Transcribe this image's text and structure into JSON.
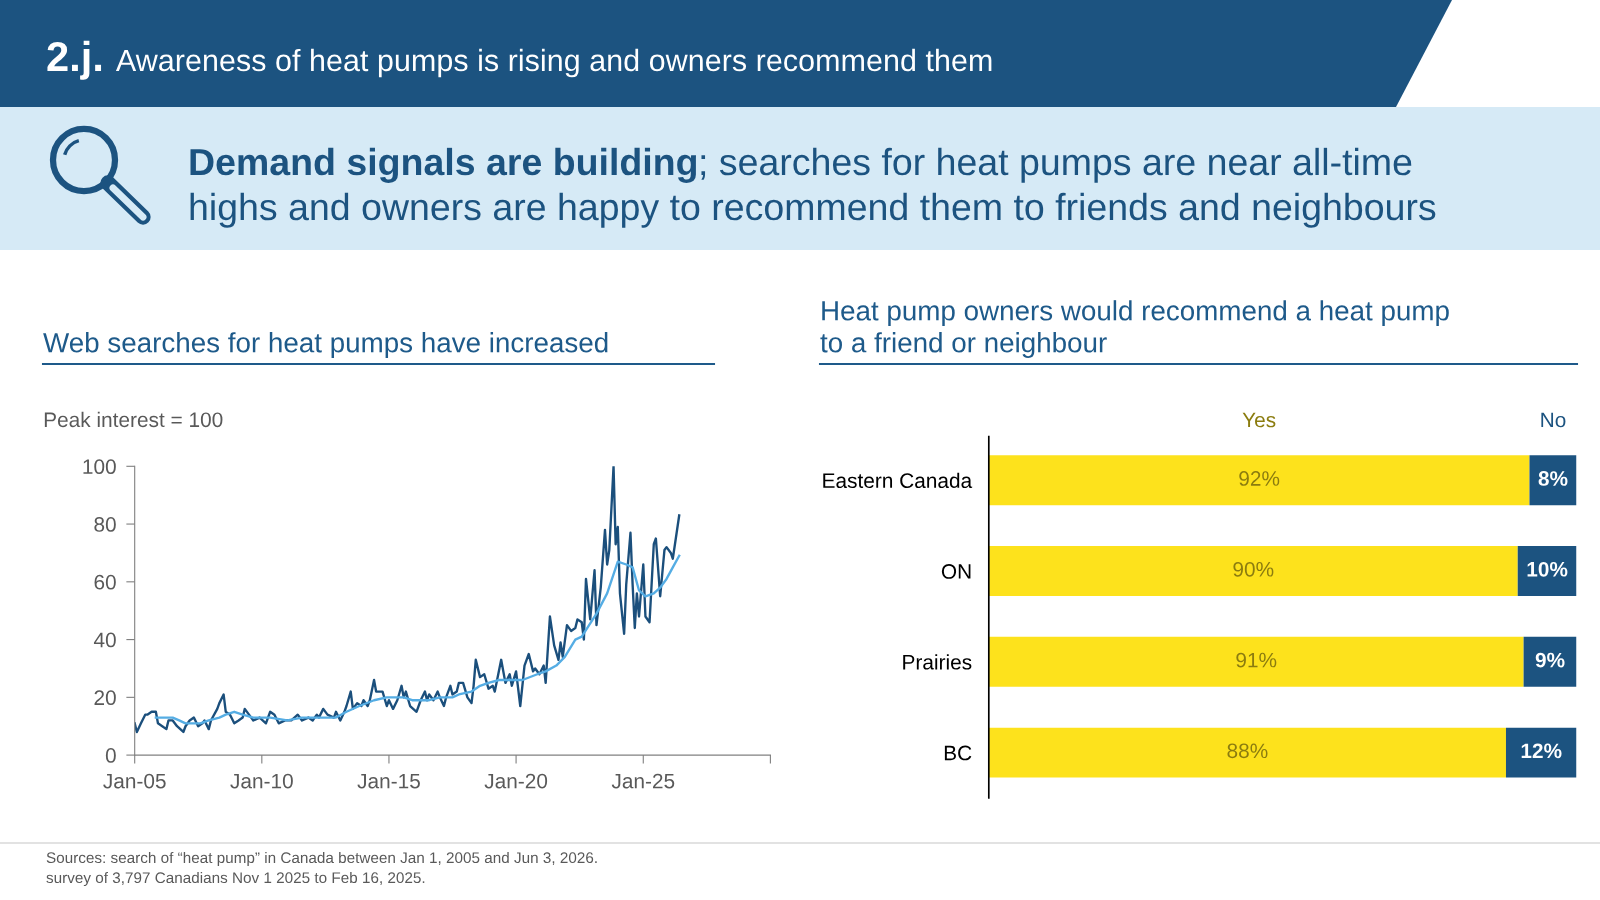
{
  "chart_data": [
    {
      "type": "line",
      "title": "Web searches for heat pumps have increased",
      "ylabel": "Peak interest = 100",
      "xlim": [
        "2005-01-01",
        "2030-01-01"
      ],
      "xticks": [
        {
          "value": "2005-01-01",
          "label": "Jan-05"
        },
        {
          "value": "2010-01-01",
          "label": "Jan-10"
        },
        {
          "value": "2015-01-01",
          "label": "Jan-15"
        },
        {
          "value": "2020-01-01",
          "label": "Jan-20"
        },
        {
          "value": "2025-01-01",
          "label": "Jan-25"
        },
        {
          "value": "2030-01-01",
          "label": null
        }
      ],
      "ylim": [
        0,
        100
      ],
      "yticks": [
        0,
        20,
        40,
        60,
        80,
        100
      ],
      "series": [
        {
          "color": "#1b4f7c",
          "x": [
            "2005-01",
            "2005-02",
            "2005-04",
            "2005-06",
            "2005-07",
            "2005-09",
            "2005-11",
            "2005-12",
            "2006-02",
            "2006-04",
            "2006-05",
            "2006-07",
            "2006-09",
            "2006-12",
            "2007-01",
            "2007-03",
            "2007-05",
            "2007-07",
            "2007-09",
            "2007-10",
            "2007-12",
            "2008-01",
            "2008-04",
            "2008-05",
            "2008-07",
            "2008-08",
            "2008-10",
            "2008-12",
            "2009-02",
            "2009-04",
            "2009-05",
            "2009-07",
            "2009-09",
            "2009-12",
            "2010-03",
            "2010-05",
            "2010-07",
            "2010-09",
            "2010-12",
            "2011-03",
            "2011-06",
            "2011-08",
            "2011-11",
            "2012-01",
            "2012-03",
            "2012-04",
            "2012-06",
            "2012-08",
            "2012-11",
            "2012-12",
            "2013-02",
            "2013-04",
            "2013-05",
            "2013-07",
            "2013-08",
            "2013-10",
            "2013-12",
            "2014-01",
            "2014-03",
            "2014-04",
            "2014-06",
            "2014-07",
            "2014-10",
            "2014-12",
            "2015-01",
            "2015-03",
            "2015-05",
            "2015-07",
            "2015-08",
            "2015-09",
            "2015-11",
            "2016-02",
            "2016-04",
            "2016-06",
            "2016-07",
            "2016-08",
            "2016-10",
            "2016-12",
            "2017-01",
            "2017-03",
            "2017-04",
            "2017-06",
            "2017-07",
            "2017-09",
            "2017-10",
            "2017-12",
            "2018-02",
            "2018-04",
            "2018-05",
            "2018-06",
            "2018-08",
            "2018-10",
            "2018-12",
            "2019-02",
            "2019-03",
            "2019-06",
            "2019-08",
            "2019-10",
            "2019-11",
            "2020-01",
            "2020-03",
            "2020-05",
            "2020-07",
            "2020-09",
            "2020-10",
            "2020-12",
            "2021-02",
            "2021-03",
            "2021-05",
            "2021-07",
            "2021-09",
            "2021-10",
            "2021-11",
            "2022-01",
            "2022-03",
            "2022-05",
            "2022-06",
            "2022-08",
            "2022-09",
            "2022-10",
            "2022-12",
            "2023-02",
            "2023-03",
            "2023-05",
            "2023-07",
            "2023-08",
            "2023-09",
            "2023-11",
            "2023-12",
            "2024-01",
            "2024-02",
            "2024-04",
            "2024-05",
            "2024-07",
            "2024-08",
            "2024-09",
            "2024-10",
            "2024-11",
            "2025-01",
            "2025-02",
            "2025-04",
            "2025-06",
            "2025-07",
            "2025-09",
            "2025-11",
            "2025-12",
            "2026-02",
            "2026-03",
            "2026-04",
            "2026-06"
          ],
          "values": [
            11,
            8,
            11,
            14,
            14,
            15,
            15,
            11,
            10,
            9,
            12,
            12,
            10,
            8,
            10,
            12,
            13,
            10,
            11,
            12,
            9,
            12,
            16,
            18,
            21,
            15,
            14,
            11,
            12,
            13,
            16,
            14,
            12,
            13,
            11,
            15,
            14,
            11,
            12,
            12,
            14,
            12,
            13,
            12,
            14,
            13,
            16,
            14,
            13,
            15,
            12,
            15,
            17,
            22,
            16,
            18,
            17,
            19,
            17,
            19,
            26,
            22,
            22,
            17,
            19,
            16,
            19,
            24,
            20,
            22,
            17,
            15,
            19,
            22,
            19,
            21,
            19,
            22,
            20,
            17,
            20,
            24,
            21,
            22,
            25,
            25,
            20,
            18,
            24,
            33,
            27,
            28,
            23,
            24,
            22,
            33,
            25,
            28,
            24,
            29,
            17,
            31,
            35,
            29,
            30,
            28,
            31,
            25,
            48,
            38,
            33,
            39,
            34,
            45,
            43,
            44,
            47,
            46,
            40,
            61,
            47,
            64,
            45,
            58,
            78,
            66,
            71,
            100,
            73,
            79,
            56,
            42,
            59,
            77,
            59,
            44,
            56,
            48,
            66,
            48,
            46,
            73,
            75,
            55,
            71,
            72,
            70,
            68,
            73,
            83
          ]
        },
        {
          "color": "#55ade4",
          "x": [
            "2005-11",
            "2006-07",
            "2006-10",
            "2007-01",
            "2007-08",
            "2007-12",
            "2008-05",
            "2008-08",
            "2008-12",
            "2009-04",
            "2009-09",
            "2010-05",
            "2011-01",
            "2011-08",
            "2012-04",
            "2012-12",
            "2013-05",
            "2013-11",
            "2014-06",
            "2014-12",
            "2015-08",
            "2015-12",
            "2016-08",
            "2017-01",
            "2017-07",
            "2017-10",
            "2018-04",
            "2018-08",
            "2018-12",
            "2019-05",
            "2019-10",
            "2020-04",
            "2020-11",
            "2021-03",
            "2021-08",
            "2021-12",
            "2022-05",
            "2022-08",
            "2023-03",
            "2023-08",
            "2024-01",
            "2024-05",
            "2024-08",
            "2024-11",
            "2025-02",
            "2025-06",
            "2025-09",
            "2025-12",
            "2026-03",
            "2026-06"
          ],
          "values": [
            13,
            13,
            12,
            11,
            11,
            12,
            13,
            14,
            15,
            14,
            13,
            13,
            12,
            13,
            13,
            13,
            15,
            17,
            19,
            20,
            20,
            19,
            19,
            20,
            20,
            21,
            22,
            24,
            25,
            26,
            26,
            26,
            28,
            29,
            31,
            34,
            40,
            41,
            49,
            56,
            67,
            66,
            65,
            57,
            55,
            56,
            58,
            61,
            65,
            69
          ]
        }
      ],
      "annotations": [
        "2.j.",
        "Awareness of heat pumps is rising and owners recommend them",
        "Demand signals are building",
        "; searches for heat pumps are near all-time",
        "highs and owners are happy to recommend them to friends and neighbours",
        "Sources: search of “heat pump” in Canada between Jan 1, 2005 and Jun 3, 2026."
      ]
    },
    {
      "type": "bar",
      "orientation": "horizontal",
      "stacked": true,
      "title": "Heat pump owners would recommend a heat pump to a friend or neighbour",
      "categories": [
        "Eastern Canada",
        "ON",
        "Prairies",
        "BC"
      ],
      "series": [
        {
          "name": "Yes",
          "color": "#fde21c",
          "values": [
            92,
            90,
            91,
            88
          ],
          "value_labels": [
            "92%",
            "90%",
            "91%",
            "88%"
          ]
        },
        {
          "name": "No",
          "color": "#1c5380",
          "values": [
            8,
            10,
            9,
            12
          ],
          "value_labels": [
            "8%",
            "10%",
            "9%",
            "12%"
          ]
        }
      ],
      "tick_labels": "y",
      "annotations": [
        "survey of 3,797 Canadians Nov 1 2025 to Feb 16, 2025."
      ]
    }
  ]
}
